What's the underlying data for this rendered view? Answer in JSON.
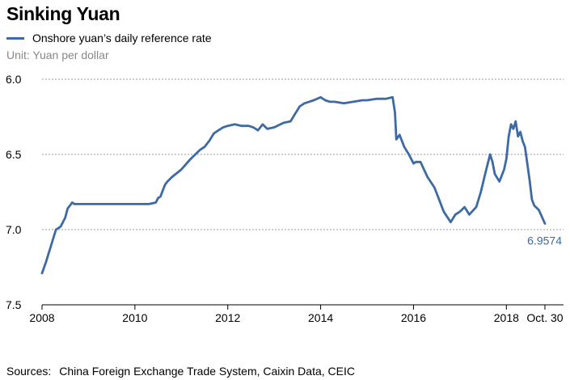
{
  "chart_data": {
    "type": "line",
    "title": "Sinking Yuan",
    "series": [
      {
        "name": "Onshore yuan’s daily reference rate",
        "color": "#3d6aa3",
        "x": [
          2008.0,
          2008.08,
          2008.2,
          2008.3,
          2008.4,
          2008.5,
          2008.55,
          2008.6,
          2008.65,
          2008.7,
          2008.8,
          2009.0,
          2009.3,
          2009.6,
          2010.0,
          2010.3,
          2010.45,
          2010.5,
          2010.55,
          2010.6,
          2010.65,
          2010.7,
          2010.8,
          2011.0,
          2011.2,
          2011.4,
          2011.5,
          2011.6,
          2011.7,
          2011.8,
          2011.9,
          2012.0,
          2012.15,
          2012.3,
          2012.45,
          2012.55,
          2012.65,
          2012.75,
          2012.85,
          2013.0,
          2013.2,
          2013.35,
          2013.45,
          2013.55,
          2013.65,
          2013.75,
          2013.85,
          2014.0,
          2014.1,
          2014.2,
          2014.3,
          2014.5,
          2014.7,
          2014.9,
          2015.0,
          2015.2,
          2015.4,
          2015.55,
          2015.6,
          2015.63,
          2015.7,
          2015.8,
          2015.9,
          2016.0,
          2016.05,
          2016.15,
          2016.3,
          2016.45,
          2016.55,
          2016.65,
          2016.8,
          2016.9,
          2017.0,
          2017.1,
          2017.2,
          2017.35,
          2017.45,
          2017.55,
          2017.65,
          2017.7,
          2017.75,
          2017.85,
          2017.95,
          2018.0,
          2018.05,
          2018.1,
          2018.15,
          2018.2,
          2018.25,
          2018.3,
          2018.35,
          2018.4,
          2018.5,
          2018.55,
          2018.6,
          2018.7,
          2018.83
        ],
        "values": [
          7.29,
          7.22,
          7.1,
          7.0,
          6.98,
          6.92,
          6.86,
          6.84,
          6.82,
          6.83,
          6.83,
          6.83,
          6.83,
          6.83,
          6.83,
          6.83,
          6.82,
          6.79,
          6.78,
          6.74,
          6.7,
          6.68,
          6.65,
          6.6,
          6.53,
          6.47,
          6.45,
          6.41,
          6.36,
          6.34,
          6.32,
          6.31,
          6.3,
          6.31,
          6.31,
          6.32,
          6.34,
          6.3,
          6.33,
          6.32,
          6.29,
          6.28,
          6.23,
          6.18,
          6.16,
          6.15,
          6.14,
          6.12,
          6.14,
          6.15,
          6.15,
          6.16,
          6.15,
          6.14,
          6.14,
          6.13,
          6.13,
          6.12,
          6.22,
          6.4,
          6.37,
          6.45,
          6.5,
          6.56,
          6.55,
          6.55,
          6.65,
          6.72,
          6.8,
          6.88,
          6.95,
          6.9,
          6.88,
          6.85,
          6.9,
          6.85,
          6.75,
          6.62,
          6.5,
          6.55,
          6.63,
          6.68,
          6.6,
          6.53,
          6.38,
          6.3,
          6.33,
          6.28,
          6.38,
          6.35,
          6.41,
          6.45,
          6.67,
          6.8,
          6.84,
          6.87,
          6.96
        ]
      }
    ],
    "xlim": [
      2008,
      2018.83
    ],
    "ylim": [
      6.0,
      7.5
    ],
    "y_inverted": true,
    "x_ticks": [
      "2008",
      "2010",
      "2012",
      "2014",
      "2016",
      "2018",
      "Oct. 30"
    ],
    "x_tick_values": [
      2008,
      2010,
      2012,
      2014,
      2016,
      2018,
      2018.83
    ],
    "y_ticks": [
      "6.0",
      "6.5",
      "7.0",
      "7.5"
    ],
    "y_tick_values": [
      6.0,
      6.5,
      7.0,
      7.5
    ],
    "end_label": "6.9574",
    "grid": true,
    "xlabel": "",
    "ylabel": ""
  },
  "header": {
    "title": "Sinking Yuan",
    "legend_label": "Onshore yuan’s daily reference rate",
    "unit": "Unit: Yuan per dollar"
  },
  "footer": {
    "sources_label": "Sources:",
    "sources_text": "China Foreign Exchange Trade System, Caixin Data, CEIC"
  }
}
